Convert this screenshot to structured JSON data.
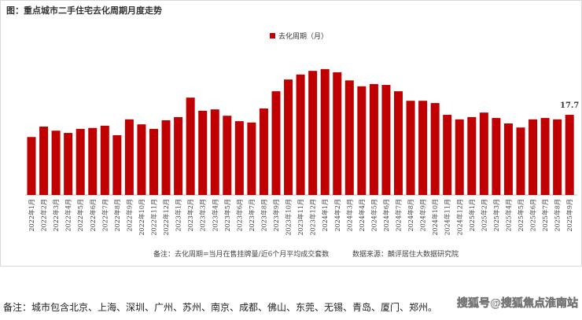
{
  "chart_data": {
    "type": "bar",
    "title": "图：重点城市二手住宅去化周期月度走势",
    "categories": [
      "2022年1月",
      "2022年2月",
      "2022年3月",
      "2022年4月",
      "2022年5月",
      "2022年6月",
      "2022年7月",
      "2022年8月",
      "2022年9月",
      "2022年10月",
      "2022年11月",
      "2022年12月",
      "2023年1月",
      "2023年2月",
      "2023年3月",
      "2023年4月",
      "2023年5月",
      "2023年6月",
      "2023年7月",
      "2023年8月",
      "2023年9月",
      "2023年10月",
      "2023年11月",
      "2023年12月",
      "2024年1月",
      "2024年2月",
      "2024年3月",
      "2024年4月",
      "2024年5月",
      "2024年6月",
      "2024年7月",
      "2024年8月",
      "2024年9月",
      "2024年10月",
      "2024年11月",
      "2024年12月",
      "2025年1月",
      "2025年2月",
      "2025年3月",
      "2025年4月",
      "2025年5月",
      "2025年6月",
      "2025年7月",
      "2025年8月",
      "2025年9月"
    ],
    "series": [
      {
        "name": "去化周期（月）",
        "color": "#c00000",
        "values": [
          12.8,
          15.1,
          14.2,
          13.7,
          14.6,
          14.8,
          15.3,
          13.2,
          16.7,
          15.6,
          14.6,
          16.5,
          17.2,
          21.5,
          18.6,
          18.9,
          17.5,
          16.3,
          16.0,
          19.1,
          22.9,
          25.5,
          26.6,
          27.4,
          27.8,
          27.1,
          25.3,
          24.0,
          24.5,
          24.3,
          22.9,
          20.8,
          20.8,
          20.3,
          17.7,
          16.7,
          17.2,
          18.2,
          17.0,
          15.8,
          14.9,
          16.7,
          17.0,
          16.7,
          17.7
        ]
      }
    ],
    "note": "备注：去化周期=当月在售挂牌量/近6个月平均成交套数",
    "source": "数据来源：麟评居住大数据研究院",
    "footnote": "备注：城市包含北京、上海、深圳、广州、苏州、南京、成都、佛山、东莞、无锡、青岛、厦门、郑州。",
    "watermark": "搜狐号@搜狐焦点淮南站"
  }
}
